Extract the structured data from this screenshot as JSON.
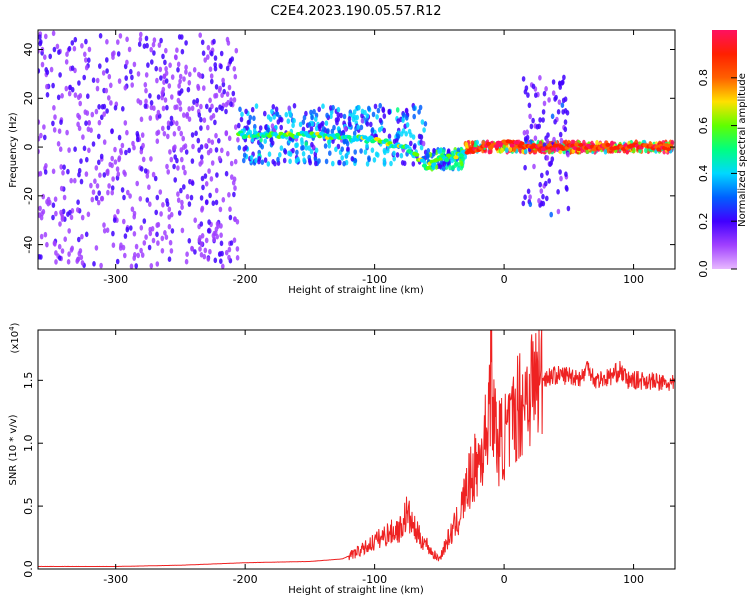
{
  "title": "C2E4.2023.190.05.57.R12",
  "chart_data": [
    {
      "type": "heatmap",
      "xlabel": "Height of straight line (km)",
      "ylabel": "Frequency (Hz)",
      "xlim": [
        -360,
        132
      ],
      "ylim": [
        -50,
        48
      ],
      "x_ticks": [
        -300,
        -200,
        -100,
        0,
        100
      ],
      "y_ticks": [
        -40,
        -20,
        0,
        20,
        40
      ],
      "colorbar": {
        "label": "Normalized spectral amplitude",
        "range": [
          0.0,
          1.0
        ],
        "ticks": [
          "0.0",
          "0.2",
          "0.4",
          "0.6",
          "0.8"
        ],
        "colormap": [
          "#e8b8ff",
          "#a040ff",
          "#4000ff",
          "#0060ff",
          "#00d8ff",
          "#00ff80",
          "#60ff00",
          "#ffe000",
          "#ff6000",
          "#ff2000",
          "#ff1060"
        ]
      },
      "regions": [
        {
          "x": [
            -360,
            -205
          ],
          "freq_spread": 48,
          "amplitude": 0.15
        },
        {
          "x": [
            -205,
            -60
          ],
          "freq_center": 5,
          "freq_spread": 12,
          "amplitude": 0.35
        },
        {
          "x": [
            -60,
            -30
          ],
          "freq_center": -5,
          "freq_spread": 4,
          "amplitude": 0.45
        },
        {
          "x": [
            -30,
            130
          ],
          "freq_center": 0,
          "freq_spread": 2,
          "amplitude": 0.9
        },
        {
          "x": [
            14,
            50
          ],
          "freq_spread": 30,
          "amplitude": 0.2
        }
      ],
      "ridge_line": [
        [
          -205,
          5
        ],
        [
          -150,
          5
        ],
        [
          -100,
          3
        ],
        [
          -75,
          0
        ],
        [
          -60,
          -8
        ],
        [
          -50,
          -5
        ],
        [
          -40,
          -4
        ],
        [
          -30,
          -2
        ],
        [
          -15,
          0
        ],
        [
          0,
          2
        ],
        [
          20,
          0
        ],
        [
          130,
          0
        ]
      ],
      "grid": false
    },
    {
      "type": "line",
      "xlabel": "Height of straight line (km)",
      "ylabel": "SNR (10 * v/v)",
      "y_multiplier": "(x10",
      "y_multiplier_exp": "4",
      "y_multiplier_close": ")",
      "xlim": [
        -360,
        132
      ],
      "ylim": [
        0,
        1.9
      ],
      "x_ticks": [
        -300,
        -200,
        -100,
        0,
        100
      ],
      "y_ticks": [
        "0.0",
        "0.5",
        "1.0",
        "1.5"
      ],
      "series": [
        {
          "color": "#ee2222",
          "x": [
            -360,
            -300,
            -250,
            -200,
            -150,
            -125,
            -110,
            -100,
            -90,
            -80,
            -75,
            -70,
            -65,
            -60,
            -55,
            -50,
            -45,
            -40,
            -35,
            -30,
            -25,
            -20,
            -15,
            -12,
            -10,
            -8,
            -5,
            0,
            5,
            10,
            15,
            20,
            25,
            30,
            40,
            50,
            60,
            65,
            70,
            80,
            90,
            95,
            100,
            110,
            120,
            130
          ],
          "values": [
            0.02,
            0.02,
            0.03,
            0.05,
            0.06,
            0.08,
            0.15,
            0.22,
            0.28,
            0.32,
            0.45,
            0.33,
            0.25,
            0.2,
            0.12,
            0.08,
            0.2,
            0.3,
            0.4,
            0.6,
            0.75,
            0.85,
            1.0,
            1.3,
            1.6,
            1.2,
            1.0,
            1.05,
            1.1,
            1.3,
            1.35,
            1.45,
            1.5,
            1.52,
            1.54,
            1.54,
            1.52,
            1.62,
            1.5,
            1.52,
            1.58,
            1.5,
            1.5,
            1.5,
            1.48,
            1.47
          ]
        }
      ],
      "grid": false
    }
  ]
}
